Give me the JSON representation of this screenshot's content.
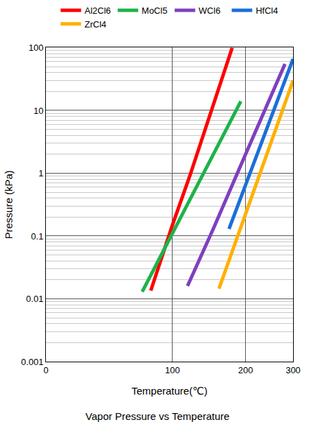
{
  "chart_data": {
    "type": "line",
    "title": "Vapor Pressure vs Temperature",
    "x_label": "Temperature(℃)",
    "y_label": "Pressure (kPa)",
    "log": "y",
    "grid": true,
    "legend": "top",
    "xlim": [
      0,
      300
    ],
    "xticks": [
      0,
      100,
      200,
      300
    ],
    "ylim": [
      0.001,
      100
    ],
    "yticks": [
      0.001,
      0.01,
      0.1,
      1,
      10,
      100
    ],
    "series": [
      {
        "name": "Al2Cl6",
        "color": "#ff0000",
        "x": [
          78,
          100,
          120,
          150,
          178
        ],
        "values": [
          0.0135,
          0.15,
          0.93,
          12,
          100
        ]
      },
      {
        "name": "MoCl5",
        "color": "#1db34a",
        "x": [
          70,
          100,
          150,
          192
        ],
        "values": [
          0.013,
          0.11,
          2.0,
          14
        ]
      },
      {
        "name": "WCl6",
        "color": "#7f3fbf",
        "x": [
          117,
          150,
          200,
          250,
          280
        ],
        "values": [
          0.016,
          0.13,
          2.0,
          17,
          55
        ]
      },
      {
        "name": "HfCl4",
        "color": "#1a6fd8",
        "x": [
          173,
          200,
          250,
          300
        ],
        "values": [
          0.13,
          0.65,
          7.8,
          66
        ]
      },
      {
        "name": "ZrCl4",
        "color": "#ffb000",
        "x": [
          158,
          200,
          250,
          300
        ],
        "values": [
          0.0145,
          0.22,
          3.1,
          30
        ]
      }
    ]
  }
}
